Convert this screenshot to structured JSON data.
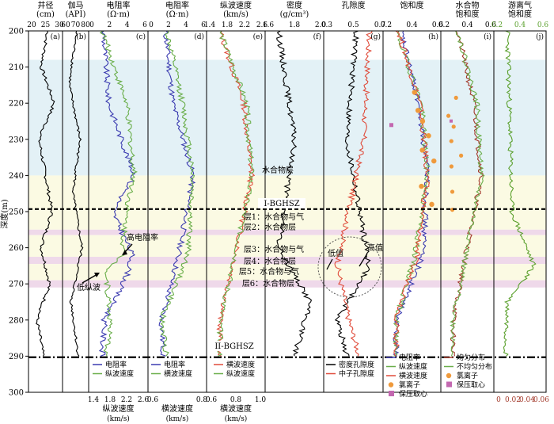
{
  "chart_data": {
    "type": "line",
    "ylabel": "深度(m)",
    "depth_range": [
      200,
      300
    ],
    "depth_ticks": [
      200,
      210,
      220,
      230,
      240,
      250,
      260,
      270,
      280,
      290,
      300
    ],
    "zones": [
      {
        "from": 208,
        "to": 240,
        "color": "#e3f1f6"
      },
      {
        "from": 240,
        "to": 255,
        "color": "#fbfae3"
      },
      {
        "from": 255,
        "to": 256.5,
        "color": "#efd9ea"
      },
      {
        "from": 256.5,
        "to": 262.5,
        "color": "#fbfae3"
      },
      {
        "from": 262.5,
        "to": 264.5,
        "color": "#efd9ea"
      },
      {
        "from": 264.5,
        "to": 269,
        "color": "#fbfae3"
      },
      {
        "from": 269,
        "to": 271,
        "color": "#efd9ea"
      }
    ],
    "boundary_lines": [
      {
        "depth": 249.3,
        "label": "I-BGHSZ",
        "style": "dashed"
      },
      {
        "depth": 290.3,
        "label": "II-BGHSZ",
        "style": "dashdot"
      }
    ],
    "tracks": [
      {
        "id": "a",
        "letter": "(a)",
        "title1": "井径",
        "title2": "(cm)",
        "scale_top": {
          "ticks": [
            "20",
            "25",
            "30"
          ],
          "color": "#000000"
        },
        "series": [
          {
            "name": "",
            "color": "#000000",
            "points": [
              [
                200,
                25.5
              ],
              [
                210,
                25.2
              ],
              [
                220,
                25.8
              ],
              [
                230,
                25.1
              ],
              [
                240,
                25.4
              ],
              [
                250,
                25.7
              ],
              [
                260,
                25.2
              ],
              [
                270,
                25.6
              ],
              [
                280,
                25.0
              ],
              [
                290,
                25.3
              ]
            ]
          }
        ]
      },
      {
        "id": "b",
        "letter": "(b)",
        "title1": "伽马",
        "title2": "(API)",
        "scale_top": {
          "ticks": [
            "60",
            "70",
            "80"
          ],
          "color": "#000000"
        },
        "series": [
          {
            "name": "",
            "color": "#000000",
            "points": [
              [
                200,
                72
              ],
              [
                215,
                68
              ],
              [
                230,
                74
              ],
              [
                245,
                70
              ],
              [
                260,
                75
              ],
              [
                275,
                69
              ],
              [
                290,
                73
              ]
            ]
          }
        ]
      },
      {
        "id": "c",
        "letter": "(c)",
        "title1": "电阻率",
        "title2": "(Ω·m)",
        "scale_top": {
          "ticks": [
            "0",
            "2",
            "4",
            "6"
          ],
          "color": "#000000"
        },
        "scale_bottom": {
          "ticks": [
            "1.4",
            "1.8",
            "2.2",
            "2.6"
          ],
          "label": "纵波速度",
          "unit": "(km/s)"
        },
        "legend": [
          {
            "label": "电阻率",
            "color": "#3b3bb0"
          },
          {
            "label": "纵波速度",
            "color": "#6aae4a"
          }
        ],
        "series": [
          {
            "name": "电阻率",
            "color": "#3b3bb0",
            "points": [
              [
                200,
                1.7
              ],
              [
                220,
                2.2
              ],
              [
                240,
                4.6
              ],
              [
                250,
                2.6
              ],
              [
                262,
                4.4
              ],
              [
                267,
                4.0
              ],
              [
                280,
                1.8
              ],
              [
                290,
                1.6
              ]
            ]
          },
          {
            "name": "纵波速度",
            "color": "#6aae4a",
            "points": [
              [
                200,
                1.65
              ],
              [
                220,
                1.95
              ],
              [
                240,
                2.05
              ],
              [
                250,
                1.95
              ],
              [
                262,
                1.9
              ],
              [
                267,
                1.7
              ],
              [
                280,
                1.75
              ],
              [
                290,
                1.7
              ]
            ]
          }
        ]
      },
      {
        "id": "d",
        "letter": "(d)",
        "title1": "电阻率",
        "title2": "(Ω·m)",
        "scale_top": {
          "ticks": [
            "0",
            "2",
            "4",
            "6"
          ],
          "color": "#000000"
        },
        "scale_bottom": {
          "ticks": [
            "0.6",
            "0.8"
          ],
          "label": "横波速度",
          "unit": "(km/s)"
        },
        "legend": [
          {
            "label": "电阻率",
            "color": "#3b3bb0"
          },
          {
            "label": "横波速度",
            "color": "#6aae4a"
          }
        ],
        "series": [
          {
            "name": "电阻率",
            "color": "#3b3bb0",
            "points": [
              [
                200,
                1.6
              ],
              [
                220,
                2.4
              ],
              [
                240,
                4.5
              ],
              [
                262,
                3.0
              ],
              [
                280,
                1.2
              ],
              [
                290,
                1.4
              ]
            ]
          },
          {
            "name": "横波速度",
            "color": "#6aae4a",
            "points": [
              [
                200,
                0.55
              ],
              [
                220,
                0.7
              ],
              [
                240,
                0.8
              ],
              [
                262,
                0.75
              ],
              [
                280,
                0.5
              ],
              [
                290,
                0.55
              ]
            ]
          }
        ]
      },
      {
        "id": "e",
        "letter": "(e)",
        "title1": "纵波速度",
        "title2": "(km/s)",
        "scale_top": {
          "ticks": [
            "1.4",
            "1.8",
            "2.2",
            "2.6"
          ],
          "color": "#000000"
        },
        "scale_bottom": {
          "ticks": [
            "0.6",
            "0.8",
            "1.0"
          ],
          "label": "横波速度",
          "unit": "(km/s)"
        },
        "legend": [
          {
            "label": "横波速度",
            "color": "#e04b3a"
          },
          {
            "label": "纵波速度",
            "color": "#6aae4a"
          }
        ],
        "series": [
          {
            "name": "横波速度",
            "color": "#e04b3a",
            "points": [
              [
                200,
                0.6
              ],
              [
                220,
                0.75
              ],
              [
                240,
                0.8
              ],
              [
                262,
                0.7
              ],
              [
                280,
                0.6
              ],
              [
                290,
                0.6
              ]
            ]
          },
          {
            "name": "纵波速度",
            "color": "#6aae4a",
            "points": [
              [
                200,
                1.7
              ],
              [
                220,
                1.95
              ],
              [
                240,
                2.0
              ],
              [
                262,
                1.85
              ],
              [
                280,
                1.7
              ],
              [
                290,
                1.7
              ]
            ]
          }
        ]
      },
      {
        "id": "f",
        "letter": "(f)",
        "title1": "密度",
        "title2": "(g/cm³)",
        "scale_top": {
          "ticks": [
            "1.6",
            "1.8",
            "2.0"
          ],
          "color": "#000000"
        },
        "series": [
          {
            "name": "",
            "color": "#000000",
            "points": [
              [
                200,
                1.8
              ],
              [
                230,
                1.85
              ],
              [
                260,
                1.8
              ],
              [
                275,
                1.9
              ],
              [
                290,
                1.85
              ]
            ]
          }
        ]
      },
      {
        "id": "g",
        "letter": "(g)",
        "title1": "孔隙度",
        "title2": "",
        "scale_top": {
          "ticks": [
            "0.3",
            "0.5",
            "0.7"
          ],
          "color": "#000000"
        },
        "legend": [
          {
            "label": "密度孔隙度",
            "color": "#000000"
          },
          {
            "label": "中子孔隙度",
            "color": "#e04b3a"
          }
        ],
        "series": [
          {
            "name": "密度孔隙度",
            "color": "#000000",
            "points": [
              [
                200,
                0.55
              ],
              [
                230,
                0.5
              ],
              [
                265,
                0.62
              ],
              [
                280,
                0.45
              ],
              [
                290,
                0.5
              ]
            ]
          },
          {
            "name": "中子孔隙度",
            "color": "#e04b3a",
            "points": [
              [
                200,
                0.62
              ],
              [
                230,
                0.58
              ],
              [
                265,
                0.4
              ],
              [
                280,
                0.48
              ],
              [
                290,
                0.55
              ]
            ]
          }
        ]
      },
      {
        "id": "h",
        "letter": "(h)",
        "title1": "饱和度",
        "title2": "",
        "scale_top": {
          "ticks": [
            "0.2",
            "0.4",
            "0.6"
          ],
          "color": "#000000"
        },
        "legend": [
          {
            "label": "电阻率",
            "color": "#3b3bb0"
          },
          {
            "label": "纵波速度",
            "color": "#6aae4a"
          },
          {
            "label": "横波速度",
            "color": "#e04b3a"
          },
          {
            "label": "氯离子",
            "color": "#ef9a3c"
          },
          {
            "label": "保压取心",
            "color": "#c368b0"
          }
        ],
        "series": [
          {
            "name": "电阻率",
            "color": "#3b3bb0",
            "points": [
              [
                200,
                0.1
              ],
              [
                220,
                0.3
              ],
              [
                240,
                0.4
              ],
              [
                262,
                0.35
              ],
              [
                280,
                0.05
              ]
            ]
          },
          {
            "name": "纵波速度",
            "color": "#6aae4a",
            "points": [
              [
                200,
                0.05
              ],
              [
                220,
                0.25
              ],
              [
                240,
                0.3
              ],
              [
                262,
                0.2
              ],
              [
                280,
                0.05
              ]
            ]
          },
          {
            "name": "横波速度",
            "color": "#e04b3a",
            "points": [
              [
                200,
                0.08
              ],
              [
                220,
                0.28
              ],
              [
                240,
                0.35
              ],
              [
                262,
                0.25
              ],
              [
                280,
                0.06
              ]
            ]
          }
        ]
      },
      {
        "id": "i",
        "letter": "(i)",
        "title1": "水合物",
        "title2": "饱和度",
        "scale_top": {
          "ticks": [
            "0.2",
            "0.4",
            "0.6"
          ],
          "color": "#000000"
        },
        "legend": [
          {
            "label": "均匀分布",
            "color": "#a33a2c"
          },
          {
            "label": "不均匀分布",
            "color": "#6aae4a"
          },
          {
            "label": "氯离子",
            "color": "#ef9a3c"
          },
          {
            "label": "保压取心",
            "color": "#c368b0"
          }
        ],
        "series": [
          {
            "name": "均匀分布",
            "color": "#a33a2c",
            "points": [
              [
                200,
                0.05
              ],
              [
                220,
                0.15
              ],
              [
                240,
                0.2
              ],
              [
                280,
                0.02
              ]
            ]
          },
          {
            "name": "不均匀分布",
            "color": "#6aae4a",
            "points": [
              [
                200,
                0.1
              ],
              [
                220,
                0.3
              ],
              [
                240,
                0.35
              ],
              [
                280,
                0.05
              ]
            ]
          }
        ]
      },
      {
        "id": "j",
        "letter": "(j)",
        "title1": "游离气",
        "title2": "饱和度",
        "scale_top": {
          "ticks": [
            "0.2",
            "0.4",
            "0.6"
          ],
          "color": "#5aa02c"
        },
        "scale_bottom": {
          "ticks": [
            "0",
            "0.02",
            "0.04",
            "0.06"
          ],
          "color": "#a33a2c"
        },
        "series": [
          {
            "name": "",
            "color": "#5aa02c",
            "points": [
              [
                200,
                0.02
              ],
              [
                250,
                0.05
              ],
              [
                265,
                0.2
              ],
              [
                275,
                0.02
              ],
              [
                290,
                0.01
              ]
            ]
          }
        ]
      }
    ],
    "annotations": [
      {
        "text": "水合物层",
        "track": "e"
      },
      {
        "text": "I-BGHSZ",
        "track": "f"
      },
      {
        "text": "层1：水合物与气",
        "track": "e"
      },
      {
        "text": "层2：水合物层",
        "track": "e"
      },
      {
        "text": "层3：水合物与气",
        "track": "e"
      },
      {
        "text": "层4：水合物层",
        "track": "e"
      },
      {
        "text": "层5：水合物与气",
        "track": "e"
      },
      {
        "text": "层6：水合物层",
        "track": "e"
      },
      {
        "text": "II-BGHSZ",
        "track": "e"
      },
      {
        "text": "高电阻率",
        "track": "c"
      },
      {
        "text": "低纵波",
        "track": "c"
      },
      {
        "text": "低值",
        "track": "g"
      },
      {
        "text": "高值",
        "track": "g"
      }
    ]
  }
}
